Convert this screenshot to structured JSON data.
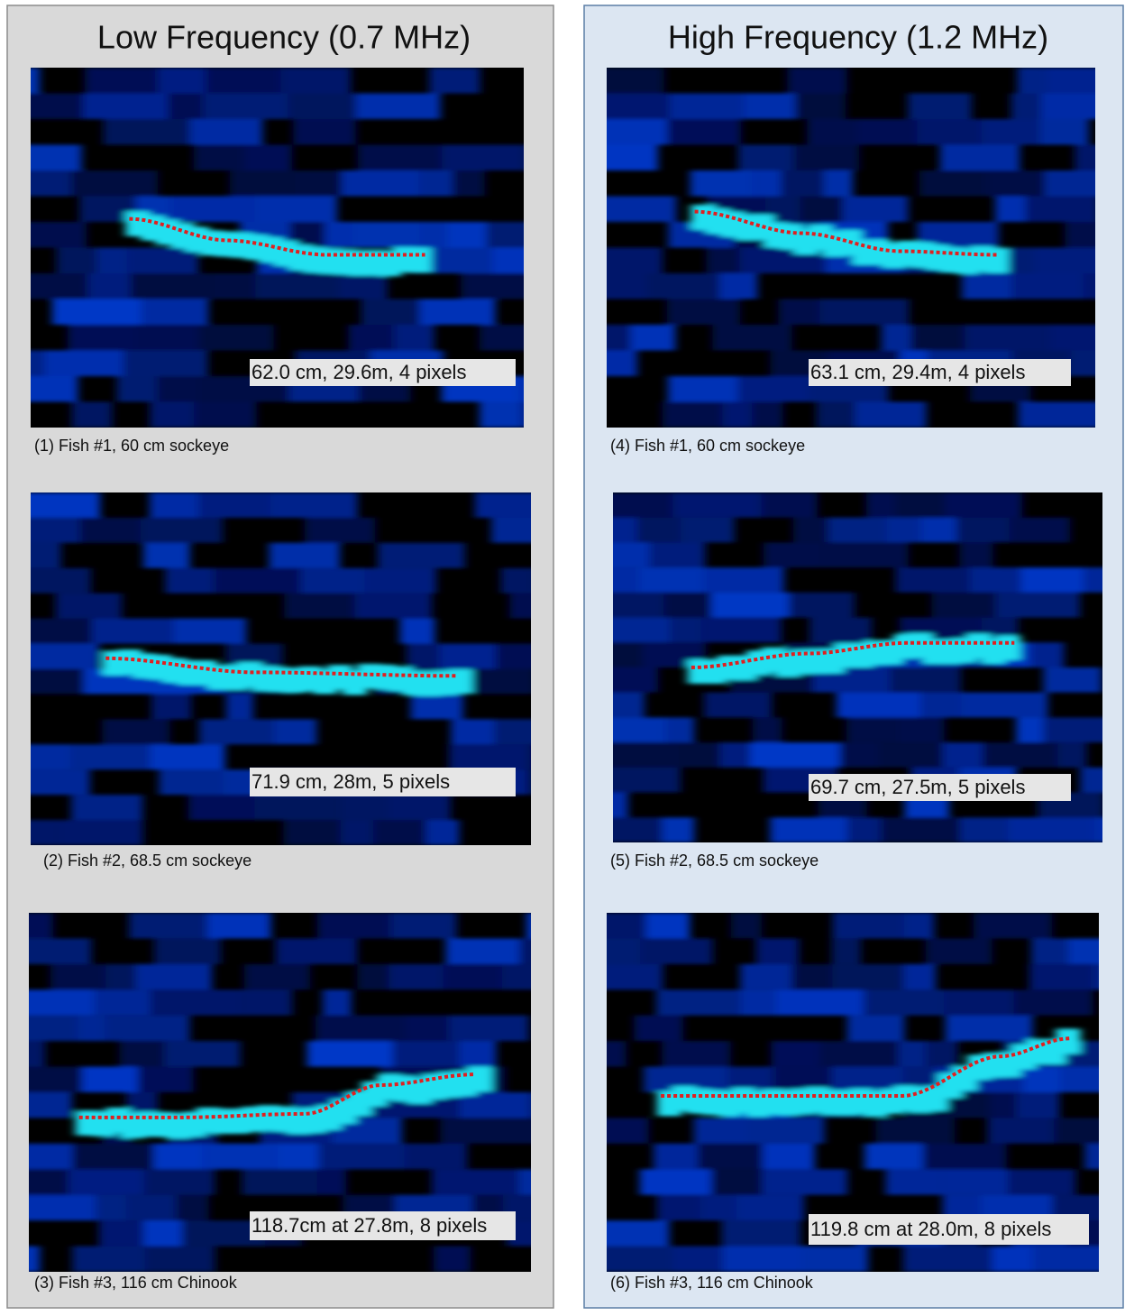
{
  "panels": [
    {
      "title": "Low Frequency (0.7 MHz)",
      "images": [
        {
          "label": "62.0  cm, 29.6m, 4 pixels",
          "caption": "(1) Fish #1, 60 cm sockeye"
        },
        {
          "label": "71.9 cm, 28m, 5 pixels",
          "caption": "(2) Fish #2, 68.5 cm sockeye"
        },
        {
          "label": "118.7cm at 27.8m, 8 pixels",
          "caption": "(3) Fish #3, 116 cm Chinook"
        }
      ]
    },
    {
      "title": "High Frequency (1.2 MHz)",
      "images": [
        {
          "label": "63.1 cm, 29.4m, 4 pixels",
          "caption": "(4) Fish #1, 60 cm sockeye"
        },
        {
          "label": "69.7 cm, 27.5m, 5 pixels",
          "caption": "(5) Fish #2, 68.5 cm sockeye"
        },
        {
          "label": "119.8 cm at 28.0m, 8 pixels",
          "caption": "(6) Fish #3, 116 cm Chinook"
        }
      ]
    }
  ]
}
